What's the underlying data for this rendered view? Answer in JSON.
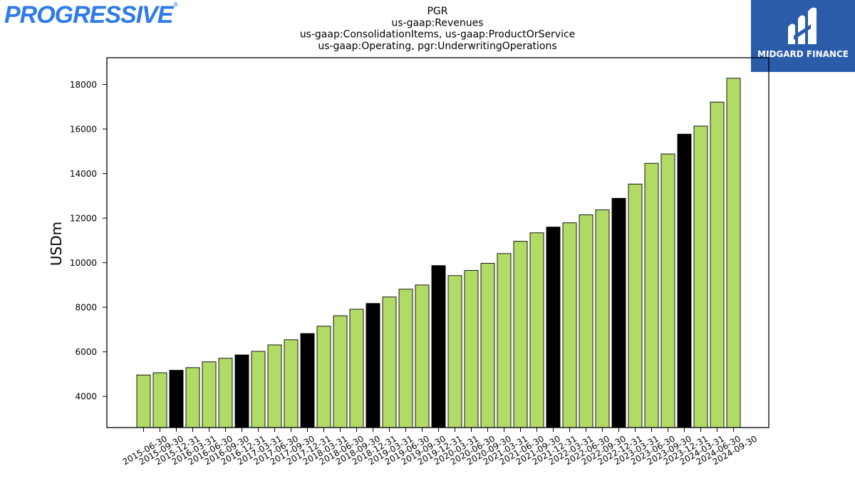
{
  "logos": {
    "left_text": "PROGRESSIVE",
    "right_text": "MIDGARD FINANCE"
  },
  "colors": {
    "bar_normal": "#b2db66",
    "bar_year_end": "#000000",
    "logo_left": "#2f7be8",
    "logo_right_bg": "#2a5caa"
  },
  "chart_data": {
    "type": "bar",
    "title_lines": [
      "PGR",
      "us-gaap:Revenues",
      "us-gaap:ConsolidationItems, us-gaap:ProductOrService",
      "us-gaap:Operating, pgr:UnderwritingOperations"
    ],
    "xlabel": "",
    "ylabel": "USDm",
    "ylim": [
      2600,
      19200
    ],
    "yticks": [
      4000,
      6000,
      8000,
      10000,
      12000,
      14000,
      16000,
      18000
    ],
    "grid": false,
    "legend": "none",
    "categories": [
      "2015-06-30",
      "2015-09-30",
      "2015-12-31",
      "2016-03-31",
      "2016-06-30",
      "2016-09-30",
      "2016-12-31",
      "2017-03-31",
      "2017-06-30",
      "2017-09-30",
      "2017-12-31",
      "2018-03-31",
      "2018-06-30",
      "2018-09-30",
      "2018-12-31",
      "2019-03-31",
      "2019-06-30",
      "2019-09-30",
      "2019-12-31",
      "2020-03-31",
      "2020-06-30",
      "2020-09-30",
      "2021-03-31",
      "2021-06-30",
      "2021-09-30",
      "2021-12-31",
      "2022-03-31",
      "2022-06-30",
      "2022-09-30",
      "2022-12-31",
      "2023-03-31",
      "2023-06-30",
      "2023-09-30",
      "2023-12-31",
      "2024-03-31",
      "2024-06-30",
      "2024-09-30"
    ],
    "values": [
      4960,
      5060,
      5170,
      5290,
      5550,
      5710,
      5860,
      6020,
      6310,
      6540,
      6820,
      7150,
      7620,
      7910,
      8170,
      8460,
      8810,
      9000,
      9870,
      9420,
      9650,
      9970,
      10410,
      10960,
      11340,
      11600,
      11790,
      12150,
      12370,
      12890,
      13530,
      14460,
      14880,
      15770,
      16130,
      17210,
      18280
    ],
    "highlight_year_end": [
      false,
      false,
      true,
      false,
      false,
      false,
      true,
      false,
      false,
      false,
      true,
      false,
      false,
      false,
      true,
      false,
      false,
      false,
      true,
      false,
      false,
      false,
      false,
      false,
      false,
      true,
      false,
      false,
      false,
      true,
      false,
      false,
      false,
      true,
      false,
      false,
      false
    ]
  }
}
